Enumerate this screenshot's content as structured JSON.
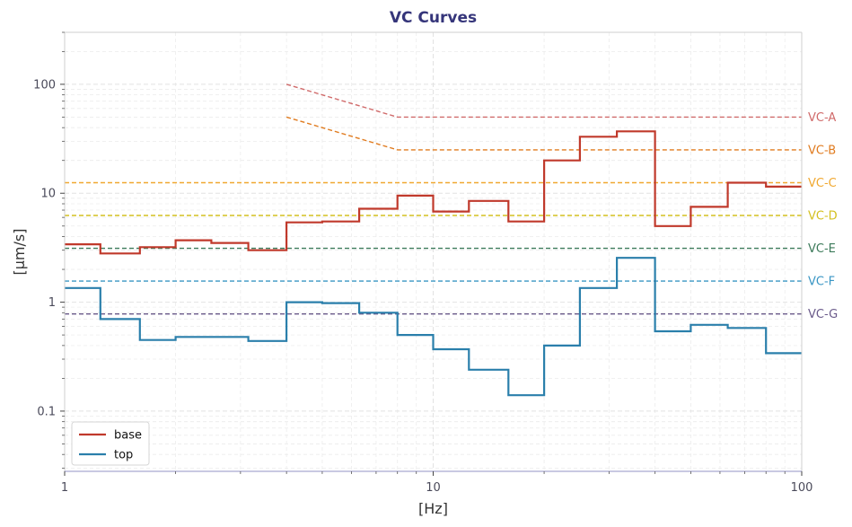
{
  "chart_data": {
    "type": "line",
    "title": "VC Curves",
    "xlabel": "[Hz]",
    "ylabel": "[µm/s]",
    "xscale": "log",
    "yscale": "log",
    "xlim": [
      1,
      100
    ],
    "ylim": [
      0.028,
      300
    ],
    "grid": true,
    "legend_position": "bottom-left",
    "x_tick_labels": [
      "1",
      "10",
      "100"
    ],
    "x_ticks": [
      1,
      10,
      100
    ],
    "y_tick_labels": [
      "0.1",
      "1",
      "10",
      "100"
    ],
    "y_ticks": [
      0.1,
      1,
      10,
      100
    ],
    "band_edges": [
      1,
      1.25,
      1.6,
      2,
      2.5,
      3.15,
      4,
      5,
      6.3,
      8,
      10,
      12.5,
      16,
      20,
      25,
      31.5,
      40,
      50,
      63,
      80,
      100
    ],
    "series": [
      {
        "name": "base",
        "color": "#c0392b",
        "step": true,
        "values": [
          3.4,
          2.8,
          3.2,
          3.7,
          3.5,
          3.0,
          5.4,
          5.5,
          7.2,
          9.5,
          6.8,
          8.5,
          5.5,
          20,
          33,
          37,
          5.0,
          7.5,
          12.5,
          11.5
        ]
      },
      {
        "name": "top",
        "color": "#2a7fab",
        "step": true,
        "values": [
          1.35,
          0.7,
          0.45,
          0.48,
          0.48,
          0.44,
          1.0,
          0.98,
          0.8,
          0.5,
          0.37,
          0.24,
          0.14,
          0.4,
          1.35,
          2.55,
          0.54,
          0.62,
          0.58,
          0.34
        ]
      }
    ],
    "criteria": [
      {
        "label": "VC-A",
        "color": "#d06a6a",
        "value": 50,
        "curve": [
          [
            4,
            100
          ],
          [
            8,
            50
          ],
          [
            100,
            50
          ]
        ]
      },
      {
        "label": "VC-B",
        "color": "#e07b1f",
        "value": 25,
        "curve": [
          [
            4,
            50
          ],
          [
            8,
            25
          ],
          [
            100,
            25
          ]
        ]
      },
      {
        "label": "VC-C",
        "color": "#f0a830",
        "value": 12.5,
        "curve": [
          [
            1,
            12.5
          ],
          [
            100,
            12.5
          ]
        ]
      },
      {
        "label": "VC-D",
        "color": "#d4c020",
        "value": 6.25,
        "curve": [
          [
            1,
            6.25
          ],
          [
            100,
            6.25
          ]
        ]
      },
      {
        "label": "VC-E",
        "color": "#3c7a5a",
        "value": 3.12,
        "curve": [
          [
            1,
            3.12
          ],
          [
            100,
            3.12
          ]
        ]
      },
      {
        "label": "VC-F",
        "color": "#3a96c4",
        "value": 1.56,
        "curve": [
          [
            1,
            1.56
          ],
          [
            100,
            1.56
          ]
        ]
      },
      {
        "label": "VC-G",
        "color": "#6a5a8a",
        "value": 0.78,
        "curve": [
          [
            1,
            0.78
          ],
          [
            100,
            0.78
          ]
        ]
      }
    ]
  }
}
